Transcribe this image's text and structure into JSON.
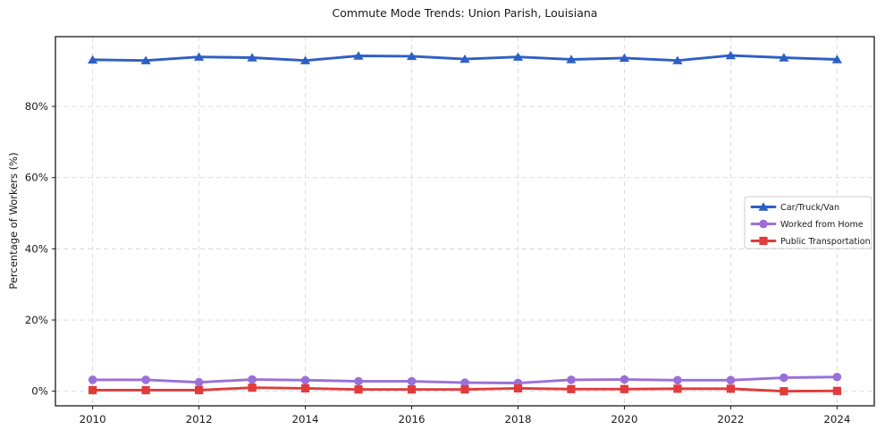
{
  "figure": {
    "background": "#ffffff"
  },
  "colors": {
    "grid": "#d8d8d8",
    "spine": "#1a1a1a",
    "text": "#1a1a1a",
    "legend_border": "#cccccc",
    "legend_background": "#ffffff"
  },
  "chart_data": {
    "type": "line",
    "title": "Commute Mode Trends: Union Parish, Louisiana",
    "xlabel": "",
    "ylabel": "Percentage of Workers (%)",
    "grid": true,
    "grid_style": "dashed",
    "legend_position": "center-right",
    "xlim": [
      2009.3,
      2024.7
    ],
    "ylim": [
      -4.1,
      99.6
    ],
    "x": [
      2010,
      2011,
      2012,
      2013,
      2014,
      2015,
      2016,
      2017,
      2018,
      2019,
      2020,
      2021,
      2022,
      2023,
      2024
    ],
    "x_ticks": [
      {
        "value": 2010,
        "label": "2010"
      },
      {
        "value": 2012,
        "label": "2012"
      },
      {
        "value": 2014,
        "label": "2014"
      },
      {
        "value": 2016,
        "label": "2016"
      },
      {
        "value": 2018,
        "label": "2018"
      },
      {
        "value": 2020,
        "label": "2020"
      },
      {
        "value": 2022,
        "label": "2022"
      },
      {
        "value": 2024,
        "label": "2024"
      }
    ],
    "y_ticks": [
      {
        "value": 0,
        "label": "0%"
      },
      {
        "value": 20,
        "label": "20%"
      },
      {
        "value": 40,
        "label": "40%"
      },
      {
        "value": 60,
        "label": "60%"
      },
      {
        "value": 80,
        "label": "80%"
      }
    ],
    "series": [
      {
        "name": "Car/Truck/Van",
        "color": "#2e5fc4",
        "marker": "triangle",
        "values": [
          93.1,
          92.9,
          93.9,
          93.7,
          92.9,
          94.2,
          94.1,
          93.3,
          93.9,
          93.2,
          93.6,
          92.9,
          94.3,
          93.7,
          93.2
        ]
      },
      {
        "name": "Worked from Home",
        "color": "#9a70d8",
        "marker": "circle",
        "values": [
          3.2,
          3.2,
          2.5,
          3.3,
          3.1,
          2.8,
          2.8,
          2.4,
          2.3,
          3.2,
          3.3,
          3.1,
          3.1,
          3.8,
          4.0
        ]
      },
      {
        "name": "Public Transportation",
        "color": "#e03c3c",
        "marker": "square",
        "values": [
          0.3,
          0.3,
          0.3,
          1.0,
          0.8,
          0.5,
          0.5,
          0.5,
          0.8,
          0.6,
          0.6,
          0.7,
          0.7,
          0.0,
          0.1
        ]
      }
    ]
  }
}
